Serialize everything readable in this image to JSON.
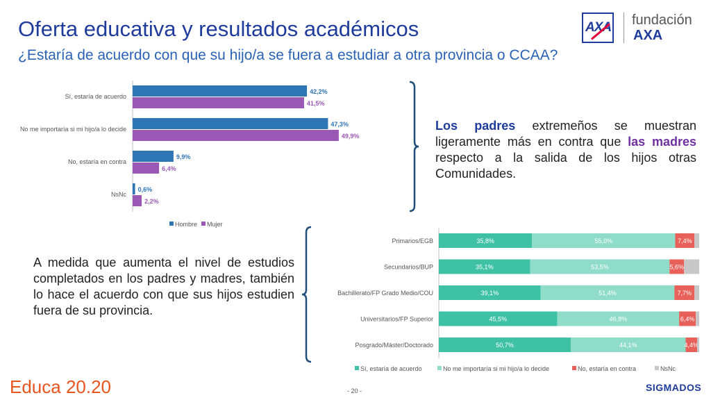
{
  "header": {
    "title": "Oferta educativa y resultados académicos",
    "subtitle": "¿Estaría de acuerdo con que su hijo/a se fuera a estudiar a otra provincia o CCAA?"
  },
  "logo": {
    "brand": "AXA",
    "line1": "fundación",
    "line2": "AXA"
  },
  "chart_data": [
    {
      "type": "bar",
      "orientation": "horizontal",
      "categories": [
        "Sí, estaría de acuerdo",
        "No me importaría si mi hijo/a lo decide",
        "No, estaría en contra",
        "NsNc"
      ],
      "series": [
        {
          "name": "Hombre",
          "color": "#2e75b6",
          "values": [
            42.2,
            47.3,
            9.9,
            0.6
          ]
        },
        {
          "name": "Mujer",
          "color": "#9b59b6",
          "values": [
            41.5,
            49.9,
            6.4,
            2.2
          ]
        }
      ],
      "value_labels": {
        "Hombre": [
          "42,2%",
          "47,3%",
          "9,9%",
          "0,6%"
        ],
        "Mujer": [
          "41,5%",
          "49,9%",
          "6,4%",
          "2,2%"
        ]
      },
      "xlim": [
        0,
        100
      ],
      "legend": "bottom"
    },
    {
      "type": "bar",
      "orientation": "horizontal",
      "stacked": true,
      "categories": [
        "Primarios/EGB",
        "Secundarios/BUP",
        "Bachillerato/FP Grado Medio/COU",
        "Universitarios/FP Superior",
        "Posgrado/Máster/Doctorado"
      ],
      "series": [
        {
          "name": "Sí, estaría de acuerdo",
          "color": "#3fc1a5",
          "values": [
            35.8,
            35.1,
            39.1,
            45.5,
            50.7
          ],
          "labels": [
            "35,8%",
            "35,1%",
            "39,1%",
            "45,5%",
            "50,7%"
          ]
        },
        {
          "name": "No me importaría si mi hijo/a lo decide",
          "color": "#8fdcc8",
          "values": [
            55.0,
            53.5,
            51.4,
            46.8,
            44.1
          ],
          "labels": [
            "55,0%",
            "53,5%",
            "51,4%",
            "46,8%",
            "44,1%"
          ]
        },
        {
          "name": "No, estaría en contra",
          "color": "#e8605a",
          "values": [
            7.4,
            5.6,
            7.7,
            6.4,
            4.4
          ],
          "labels": [
            "7,4%",
            "5,6%",
            "7,7%",
            "6,4%",
            "4,4%"
          ]
        },
        {
          "name": "NsNc",
          "color": "#c8c8c8",
          "values": [
            1.8,
            5.8,
            1.8,
            1.3,
            0.8
          ],
          "labels": [
            "",
            "",
            "",
            "",
            ""
          ]
        }
      ],
      "xlim": [
        0,
        100
      ],
      "legend": "bottom"
    }
  ],
  "notes": {
    "note1_a": "Los padres",
    "note1_b": " extremeños se muestran ligeramente más en contra que ",
    "note1_c": "las madres",
    "note1_d": " respecto a la salida de los hijos otras Comunidades.",
    "note2": "A medida que aumenta el nivel de estudios completados en los padres y madres, también lo hace el acuerdo con que sus hijos estudien fuera de su provincia."
  },
  "footer": {
    "brand": "Educa 20.20",
    "page": "- 20 -",
    "company": "SIGMADOS"
  },
  "colors": {
    "bracket": "#1f4e79",
    "axis": "#bfbfbf"
  }
}
